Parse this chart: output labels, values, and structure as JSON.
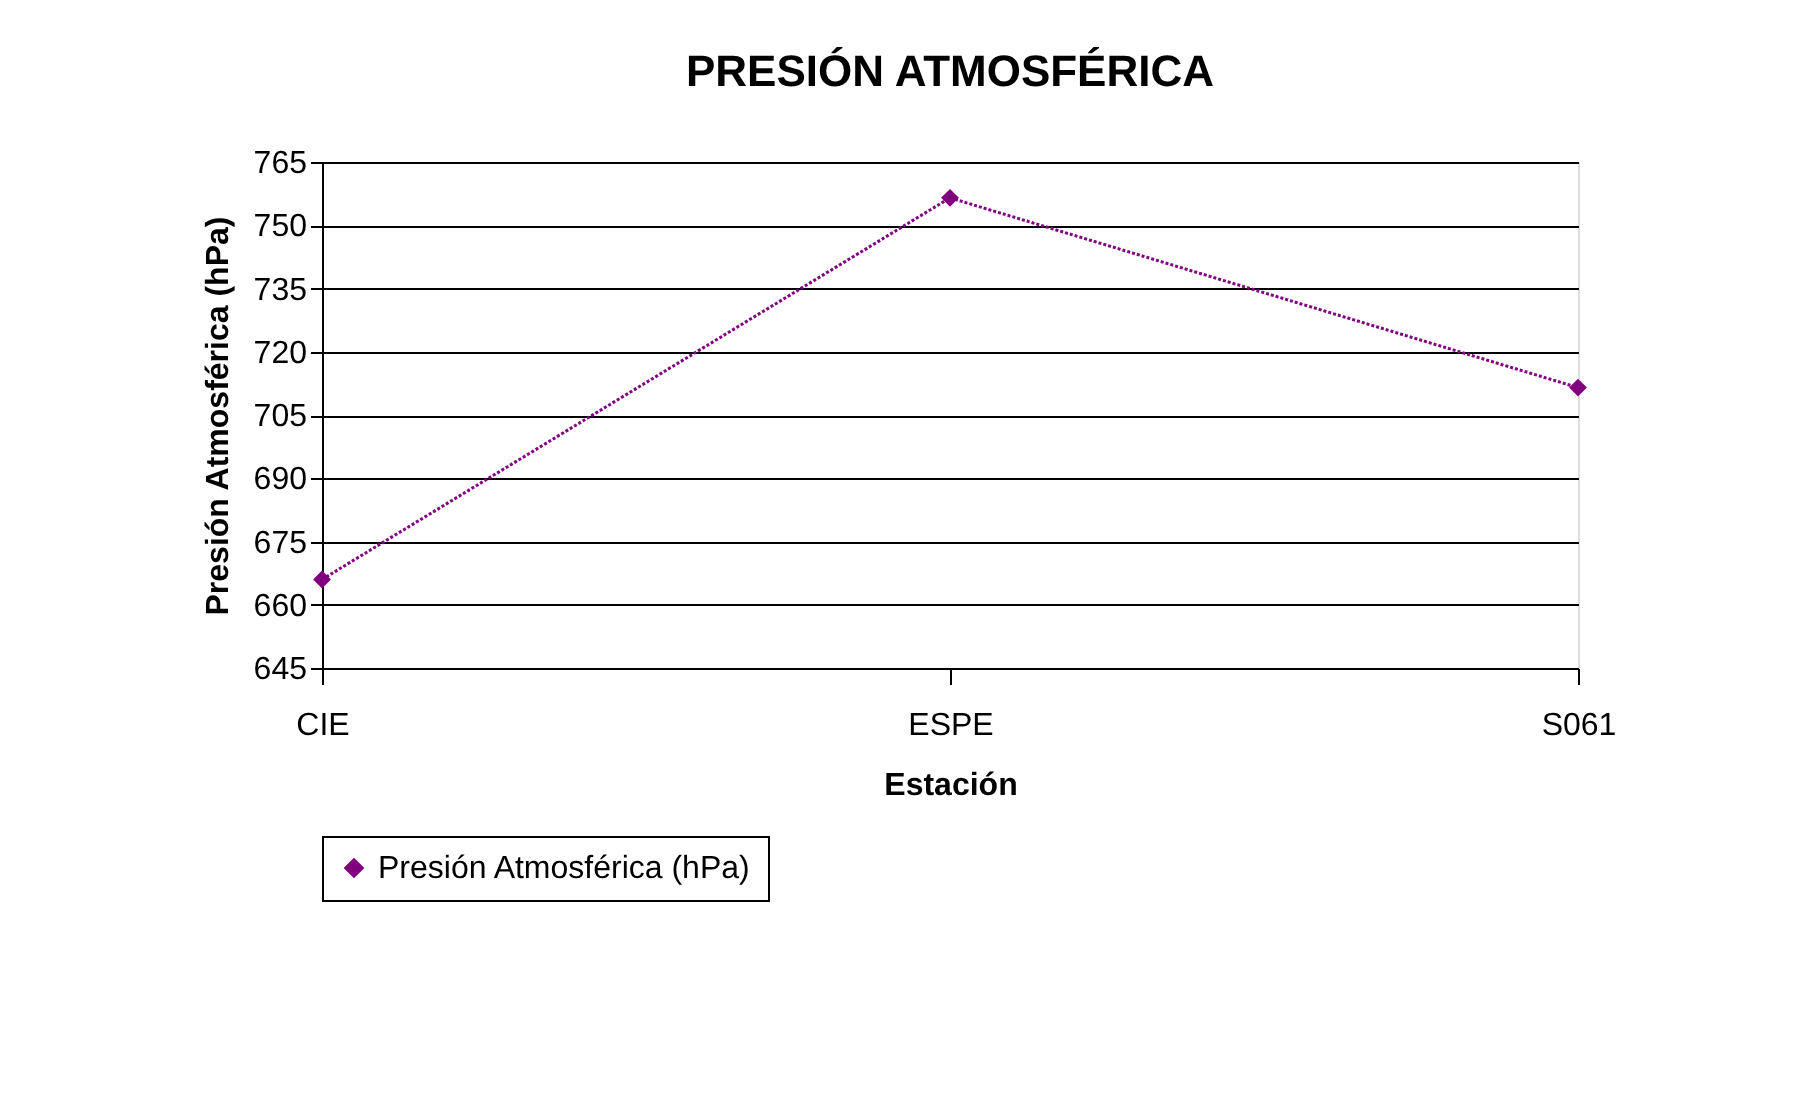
{
  "chart_data": {
    "type": "line",
    "title": "PRESIÓN ATMOSFÉRICA",
    "xlabel": "Estación",
    "ylabel": "Presión Atmosférica (hPa)",
    "categories": [
      "CIE",
      "ESPE",
      "S061"
    ],
    "series": [
      {
        "name": "Presión Atmosférica (hPa)",
        "color": "#800080",
        "values": [
          666,
          756.5,
          711.5
        ]
      }
    ],
    "ylim": [
      645,
      765
    ],
    "yticks": [
      645,
      660,
      675,
      690,
      705,
      720,
      735,
      750,
      765
    ],
    "grid": "y",
    "legend": "bottom",
    "marker": "diamond",
    "line_style": "dotted"
  }
}
